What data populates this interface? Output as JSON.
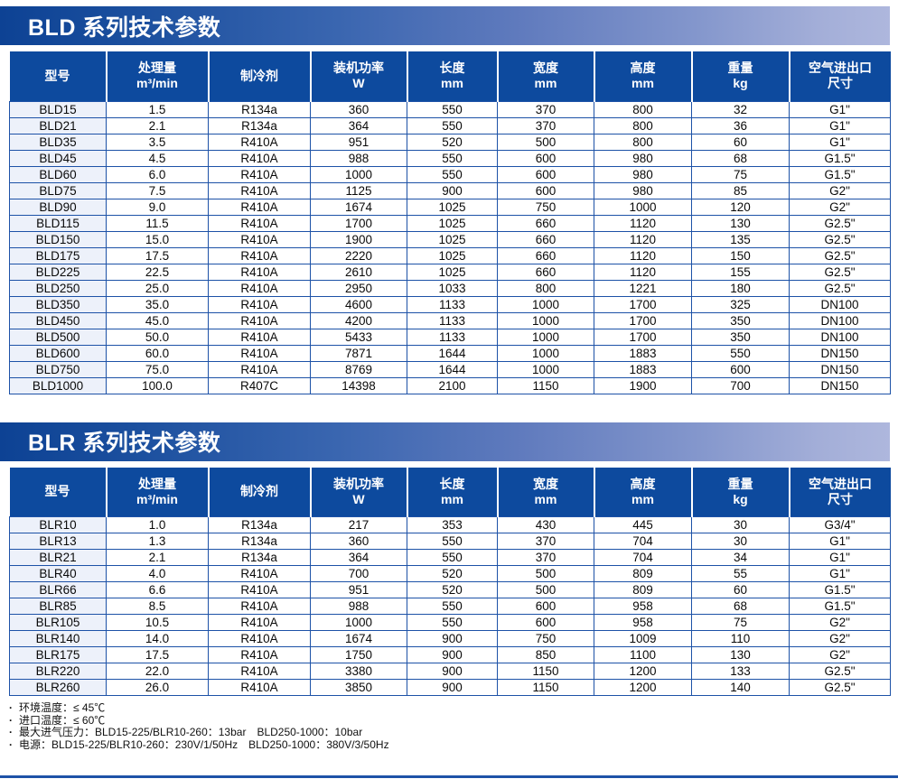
{
  "colors": {
    "table_header_bg": "#0d4a9e",
    "table_border": "#1d52a7",
    "banner_gradient_start": "#0d4294",
    "banner_gradient_end": "#aeb7dd",
    "model_column_tint": "#edf1fa",
    "title_text": "#ffffff"
  },
  "tables": [
    {
      "title": "BLD 系列技术参数",
      "columns": [
        {
          "label": "型号",
          "unit": ""
        },
        {
          "label": "处理量",
          "unit": "m³/min"
        },
        {
          "label": "制冷剂",
          "unit": ""
        },
        {
          "label": "装机功率",
          "unit": "W"
        },
        {
          "label": "长度",
          "unit": "mm"
        },
        {
          "label": "宽度",
          "unit": "mm"
        },
        {
          "label": "高度",
          "unit": "mm"
        },
        {
          "label": "重量",
          "unit": "kg"
        },
        {
          "label": "空气进出口",
          "unit": "尺寸"
        }
      ],
      "rows": [
        [
          "BLD15",
          "1.5",
          "R134a",
          "360",
          "550",
          "370",
          "800",
          "32",
          "G1\""
        ],
        [
          "BLD21",
          "2.1",
          "R134a",
          "364",
          "550",
          "370",
          "800",
          "36",
          "G1\""
        ],
        [
          "BLD35",
          "3.5",
          "R410A",
          "951",
          "520",
          "500",
          "800",
          "60",
          "G1\""
        ],
        [
          "BLD45",
          "4.5",
          "R410A",
          "988",
          "550",
          "600",
          "980",
          "68",
          "G1.5\""
        ],
        [
          "BLD60",
          "6.0",
          "R410A",
          "1000",
          "550",
          "600",
          "980",
          "75",
          "G1.5\""
        ],
        [
          "BLD75",
          "7.5",
          "R410A",
          "1125",
          "900",
          "600",
          "980",
          "85",
          "G2\""
        ],
        [
          "BLD90",
          "9.0",
          "R410A",
          "1674",
          "1025",
          "750",
          "1000",
          "120",
          "G2\""
        ],
        [
          "BLD115",
          "11.5",
          "R410A",
          "1700",
          "1025",
          "660",
          "1120",
          "130",
          "G2.5\""
        ],
        [
          "BLD150",
          "15.0",
          "R410A",
          "1900",
          "1025",
          "660",
          "1120",
          "135",
          "G2.5\""
        ],
        [
          "BLD175",
          "17.5",
          "R410A",
          "2220",
          "1025",
          "660",
          "1120",
          "150",
          "G2.5\""
        ],
        [
          "BLD225",
          "22.5",
          "R410A",
          "2610",
          "1025",
          "660",
          "1120",
          "155",
          "G2.5\""
        ],
        [
          "BLD250",
          "25.0",
          "R410A",
          "2950",
          "1033",
          "800",
          "1221",
          "180",
          "G2.5\""
        ],
        [
          "BLD350",
          "35.0",
          "R410A",
          "4600",
          "1133",
          "1000",
          "1700",
          "325",
          "DN100"
        ],
        [
          "BLD450",
          "45.0",
          "R410A",
          "4200",
          "1133",
          "1000",
          "1700",
          "350",
          "DN100"
        ],
        [
          "BLD500",
          "50.0",
          "R410A",
          "5433",
          "1133",
          "1000",
          "1700",
          "350",
          "DN100"
        ],
        [
          "BLD600",
          "60.0",
          "R410A",
          "7871",
          "1644",
          "1000",
          "1883",
          "550",
          "DN150"
        ],
        [
          "BLD750",
          "75.0",
          "R410A",
          "8769",
          "1644",
          "1000",
          "1883",
          "600",
          "DN150"
        ],
        [
          "BLD1000",
          "100.0",
          "R407C",
          "14398",
          "2100",
          "1150",
          "1900",
          "700",
          "DN150"
        ]
      ]
    },
    {
      "title": "BLR 系列技术参数",
      "columns": [
        {
          "label": "型号",
          "unit": ""
        },
        {
          "label": "处理量",
          "unit": "m³/min"
        },
        {
          "label": "制冷剂",
          "unit": ""
        },
        {
          "label": "装机功率",
          "unit": "W"
        },
        {
          "label": "长度",
          "unit": "mm"
        },
        {
          "label": "宽度",
          "unit": "mm"
        },
        {
          "label": "高度",
          "unit": "mm"
        },
        {
          "label": "重量",
          "unit": "kg"
        },
        {
          "label": "空气进出口",
          "unit": "尺寸"
        }
      ],
      "rows": [
        [
          "BLR10",
          "1.0",
          "R134a",
          "217",
          "353",
          "430",
          "445",
          "30",
          "G3/4\""
        ],
        [
          "BLR13",
          "1.3",
          "R134a",
          "360",
          "550",
          "370",
          "704",
          "30",
          "G1\""
        ],
        [
          "BLR21",
          "2.1",
          "R134a",
          "364",
          "550",
          "370",
          "704",
          "34",
          "G1\""
        ],
        [
          "BLR40",
          "4.0",
          "R410A",
          "700",
          "520",
          "500",
          "809",
          "55",
          "G1\""
        ],
        [
          "BLR66",
          "6.6",
          "R410A",
          "951",
          "520",
          "500",
          "809",
          "60",
          "G1.5\""
        ],
        [
          "BLR85",
          "8.5",
          "R410A",
          "988",
          "550",
          "600",
          "958",
          "68",
          "G1.5\""
        ],
        [
          "BLR105",
          "10.5",
          "R410A",
          "1000",
          "550",
          "600",
          "958",
          "75",
          "G2\""
        ],
        [
          "BLR140",
          "14.0",
          "R410A",
          "1674",
          "900",
          "750",
          "1009",
          "110",
          "G2\""
        ],
        [
          "BLR175",
          "17.5",
          "R410A",
          "1750",
          "900",
          "850",
          "1100",
          "130",
          "G2\""
        ],
        [
          "BLR220",
          "22.0",
          "R410A",
          "3380",
          "900",
          "1150",
          "1200",
          "133",
          "G2.5\""
        ],
        [
          "BLR260",
          "26.0",
          "R410A",
          "3850",
          "900",
          "1150",
          "1200",
          "140",
          "G2.5\""
        ]
      ]
    }
  ],
  "notes": [
    "环境温度：≤ 45℃",
    "进口温度：≤ 60℃",
    "最大进气压力：BLD15-225/BLR10-260：13bar　BLD250-1000：10bar",
    "电源：BLD15-225/BLR10-260：230V/1/50Hz　BLD250-1000：380V/3/50Hz"
  ]
}
